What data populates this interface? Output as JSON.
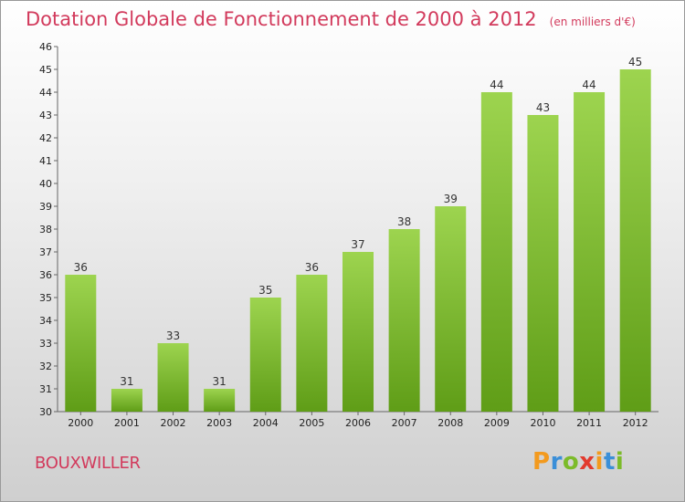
{
  "chart_data": {
    "type": "bar",
    "title": "Dotation Globale de Fonctionnement de 2000 à 2012",
    "unit": "(en milliers d'€)",
    "categories": [
      "2000",
      "2001",
      "2002",
      "2003",
      "2004",
      "2005",
      "2006",
      "2007",
      "2008",
      "2009",
      "2010",
      "2011",
      "2012"
    ],
    "values": [
      36,
      31,
      33,
      31,
      35,
      36,
      37,
      38,
      39,
      44,
      43,
      44,
      45
    ],
    "ylim": [
      30,
      46
    ],
    "yticks": [
      30,
      31,
      32,
      33,
      34,
      35,
      36,
      37,
      38,
      39,
      40,
      41,
      42,
      43,
      44,
      45,
      46
    ],
    "grid": false,
    "colors": {
      "bar_top": "#9dd44f",
      "bar_bottom": "#5f9d17",
      "title": "#d23a5c"
    }
  },
  "commune": "BOUXWILLER",
  "logo": {
    "text": "Proxiti",
    "letters": [
      {
        "ch": "P",
        "color": "#f39a1e"
      },
      {
        "ch": "r",
        "color": "#3b8fd8"
      },
      {
        "ch": "o",
        "color": "#7cbb2a"
      },
      {
        "ch": "x",
        "color": "#e23a2e"
      },
      {
        "ch": "i",
        "color": "#f39a1e"
      },
      {
        "ch": "t",
        "color": "#3b8fd8"
      },
      {
        "ch": "i",
        "color": "#7cbb2a"
      }
    ]
  }
}
